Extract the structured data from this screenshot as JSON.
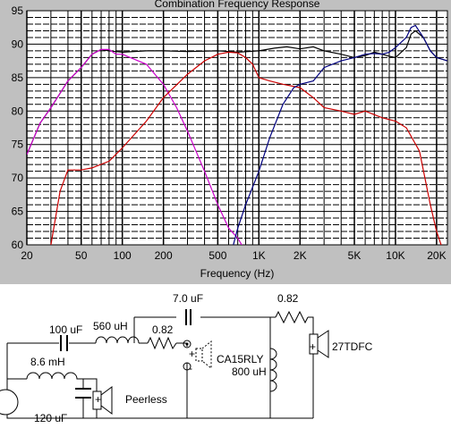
{
  "chart_data": {
    "type": "line",
    "title": "Combination Frequency Response",
    "xlabel": "Frequency (Hz)",
    "ylabel": "",
    "x_scale": "log",
    "xlim": [
      20,
      24000
    ],
    "ylim": [
      60,
      95
    ],
    "x_ticks": [
      {
        "value": 20,
        "label": "20"
      },
      {
        "value": 50,
        "label": "50"
      },
      {
        "value": 100,
        "label": "100"
      },
      {
        "value": 200,
        "label": "200"
      },
      {
        "value": 500,
        "label": "500"
      },
      {
        "value": 1000,
        "label": "1K"
      },
      {
        "value": 2000,
        "label": "2K"
      },
      {
        "value": 5000,
        "label": "5K"
      },
      {
        "value": 10000,
        "label": "10K"
      },
      {
        "value": 20000,
        "label": "20K"
      }
    ],
    "y_ticks": [
      {
        "value": 60,
        "label": "60"
      },
      {
        "value": 65,
        "label": "65"
      },
      {
        "value": 70,
        "label": "70"
      },
      {
        "value": 75,
        "label": "75"
      },
      {
        "value": 80,
        "label": "80"
      },
      {
        "value": 85,
        "label": "85"
      },
      {
        "value": 90,
        "label": "90"
      },
      {
        "value": 95,
        "label": "95"
      }
    ],
    "grid": true,
    "series": [
      {
        "color": "#000000",
        "x": [
          20,
          25,
          30,
          40,
          50,
          60,
          70,
          80,
          100,
          150,
          200,
          300,
          500,
          700,
          1000,
          1300,
          1600,
          2000,
          2500,
          3000,
          4000,
          5000,
          6000,
          7000,
          8000,
          9000,
          10000,
          12000,
          13000,
          14000,
          16000,
          18000,
          20000,
          24000
        ],
        "y": [
          73.5,
          78.2,
          80.5,
          84.5,
          86.5,
          88.5,
          89.2,
          89.0,
          88.8,
          89.0,
          89.0,
          88.9,
          89.0,
          88.8,
          89.0,
          89.4,
          89.6,
          89.3,
          89.6,
          89.0,
          88.5,
          88.0,
          88.3,
          88.8,
          88.5,
          88.2,
          88.0,
          89.5,
          91.5,
          92.0,
          91.0,
          89.0,
          88.0,
          87.5
        ]
      },
      {
        "color": "#cc00cc",
        "x": [
          20,
          25,
          30,
          40,
          50,
          60,
          70,
          80,
          90,
          100,
          150,
          200,
          250,
          300,
          400,
          500,
          600,
          700,
          800
        ],
        "y": [
          73.5,
          78.2,
          80.5,
          84.5,
          86.5,
          88.5,
          89.2,
          89.2,
          88.5,
          88.5,
          87.0,
          84.0,
          80.5,
          77.0,
          71.0,
          66.0,
          62.5,
          61.0,
          59.0
        ]
      },
      {
        "color": "#cc0000",
        "x": [
          30,
          35,
          40,
          50,
          60,
          80,
          100,
          150,
          200,
          300,
          400,
          500,
          600,
          700,
          800,
          900,
          1000,
          1200,
          1500,
          2000,
          2500,
          3000,
          4000,
          5000,
          6000,
          8000,
          10000,
          12000,
          15000,
          18000,
          20000,
          22000
        ],
        "y": [
          60.0,
          68.0,
          71.2,
          71.2,
          71.5,
          72.5,
          74.5,
          78.5,
          82.0,
          85.5,
          87.5,
          88.5,
          88.8,
          88.7,
          88.0,
          87.0,
          85.0,
          84.5,
          84.0,
          83.5,
          82.0,
          80.5,
          80.0,
          79.5,
          80.0,
          79.0,
          78.5,
          77.5,
          74.0,
          66.0,
          62.0,
          59.5
        ]
      },
      {
        "color": "#000080",
        "x": [
          650,
          700,
          800,
          1000,
          1200,
          1500,
          1800,
          2000,
          2500,
          3000,
          4000,
          5000,
          6000,
          7000,
          8000,
          9000,
          10000,
          12000,
          13000,
          14000,
          16000,
          18000,
          20000,
          24000
        ],
        "y": [
          60.0,
          62.5,
          66.0,
          71.0,
          76.0,
          81.0,
          83.5,
          84.0,
          84.5,
          86.5,
          87.5,
          88.0,
          88.5,
          88.6,
          88.5,
          88.8,
          89.5,
          91.0,
          92.5,
          92.8,
          91.0,
          89.0,
          88.0,
          87.5
        ]
      }
    ]
  },
  "schematic": {
    "labels": {
      "c_top": "7.0 uF",
      "r_top": "0.82",
      "c_mid": "100 uF",
      "l_mid": "560 uH",
      "r_mid": "0.82",
      "l_bottom": "8.6 mH",
      "c_bottom": "120 uF",
      "woofer": "Peerless",
      "midrange": "CA15RLY",
      "l_shunt": "800 uH",
      "tweeter": "27TDFC",
      "plus": "+",
      "minus": "-"
    }
  }
}
